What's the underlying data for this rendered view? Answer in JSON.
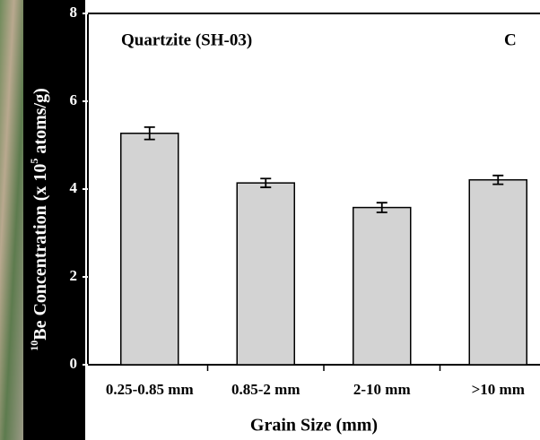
{
  "chart_data": {
    "type": "bar",
    "annotation": "Quartzite (SH-03)",
    "panel_label": "C",
    "ylabel": [
      "10",
      "Be Concentration (x 10",
      "5",
      " atoms/g)"
    ],
    "xlabel": "Grain Size (mm)",
    "categories": [
      "0.25-0.85 mm",
      "0.85-2 mm",
      "2-10 mm",
      ">10 mm"
    ],
    "values": [
      5.27,
      4.14,
      3.58,
      4.21
    ],
    "errors": [
      0.14,
      0.1,
      0.11,
      0.1
    ],
    "color": "#d3d3d3",
    "ylim": [
      0,
      8
    ],
    "yticks": [
      0,
      2,
      4,
      6,
      8
    ]
  }
}
